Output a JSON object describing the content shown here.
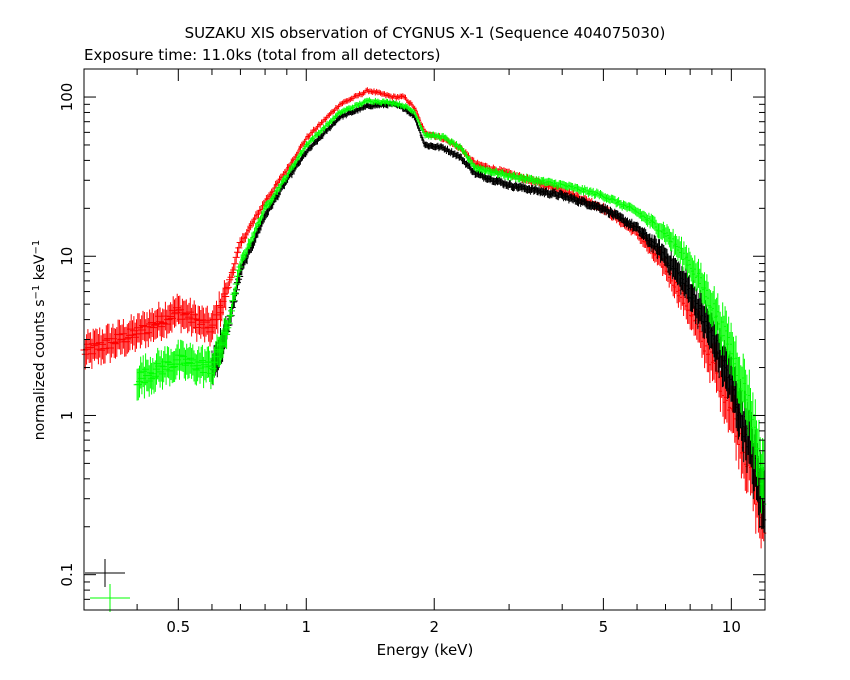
{
  "chart_data": {
    "type": "scatter",
    "title": "SUZAKU XIS observation of CYGNUS X-1 (Sequence 404075030)",
    "subtitle": "Exposure time: 11.0ks (total from all detectors)",
    "xlabel": "Energy (keV)",
    "ylabel": {
      "main": "normalized counts s",
      "exp1": "−1",
      "mid": " keV",
      "exp2": "−1"
    },
    "x_scale": "log",
    "y_scale": "log",
    "xlim": [
      0.3,
      12
    ],
    "ylim": [
      0.06,
      150
    ],
    "x_ticks": [
      {
        "value": 0.5,
        "label": "0.5"
      },
      {
        "value": 1,
        "label": "1"
      },
      {
        "value": 2,
        "label": "2"
      },
      {
        "value": 5,
        "label": "5"
      },
      {
        "value": 10,
        "label": "10"
      }
    ],
    "y_ticks": [
      {
        "value": 0.1,
        "label": "0.1"
      },
      {
        "value": 1,
        "label": "1"
      },
      {
        "value": 10,
        "label": "10"
      },
      {
        "value": 100,
        "label": "100"
      }
    ],
    "grid": false,
    "series": [
      {
        "color": "#ff0000",
        "x": [
          0.3,
          0.4,
          0.5,
          0.6,
          0.65,
          0.7,
          0.8,
          0.9,
          1.0,
          1.2,
          1.4,
          1.6,
          1.7,
          1.8,
          1.9,
          2.1,
          2.3,
          2.5,
          3,
          4,
          5,
          6,
          7,
          8,
          9,
          10,
          11,
          12
        ],
        "y": [
          2.5,
          3.3,
          4.5,
          3.5,
          6,
          12,
          22,
          35,
          55,
          90,
          110,
          100,
          100,
          85,
          60,
          55,
          48,
          38,
          33,
          26,
          20,
          14,
          8.5,
          4.5,
          2.2,
          1.1,
          0.5,
          0.2
        ]
      },
      {
        "color": "#000000",
        "x": [
          0.6,
          0.65,
          0.7,
          0.8,
          0.9,
          1.0,
          1.2,
          1.4,
          1.6,
          1.7,
          1.8,
          1.9,
          2.1,
          2.3,
          2.5,
          3,
          4,
          5,
          6,
          7,
          8,
          9,
          10,
          11,
          12
        ],
        "y": [
          2.0,
          3.3,
          8,
          18,
          30,
          45,
          75,
          88,
          90,
          85,
          75,
          50,
          48,
          42,
          33,
          28,
          24,
          20,
          15,
          10,
          6,
          3.2,
          1.6,
          0.7,
          0.25
        ]
      },
      {
        "color": "#00ff00",
        "x": [
          0.4,
          0.5,
          0.6,
          0.65,
          0.7,
          0.8,
          0.9,
          1.0,
          1.2,
          1.4,
          1.6,
          1.7,
          1.8,
          1.9,
          2.1,
          2.3,
          2.5,
          3,
          4,
          5,
          6,
          7,
          8,
          9,
          10,
          11,
          12
        ],
        "y": [
          1.7,
          2.2,
          2.0,
          3.3,
          9,
          20,
          32,
          50,
          80,
          95,
          92,
          88,
          80,
          58,
          56,
          48,
          36,
          32,
          28,
          24,
          19,
          14,
          9,
          5,
          2.6,
          1.2,
          0.35
        ]
      }
    ],
    "legend_markers": [
      {
        "color": "#000000",
        "position": "bottom-left"
      },
      {
        "color": "#00ff00",
        "position": "bottom-left"
      }
    ]
  }
}
